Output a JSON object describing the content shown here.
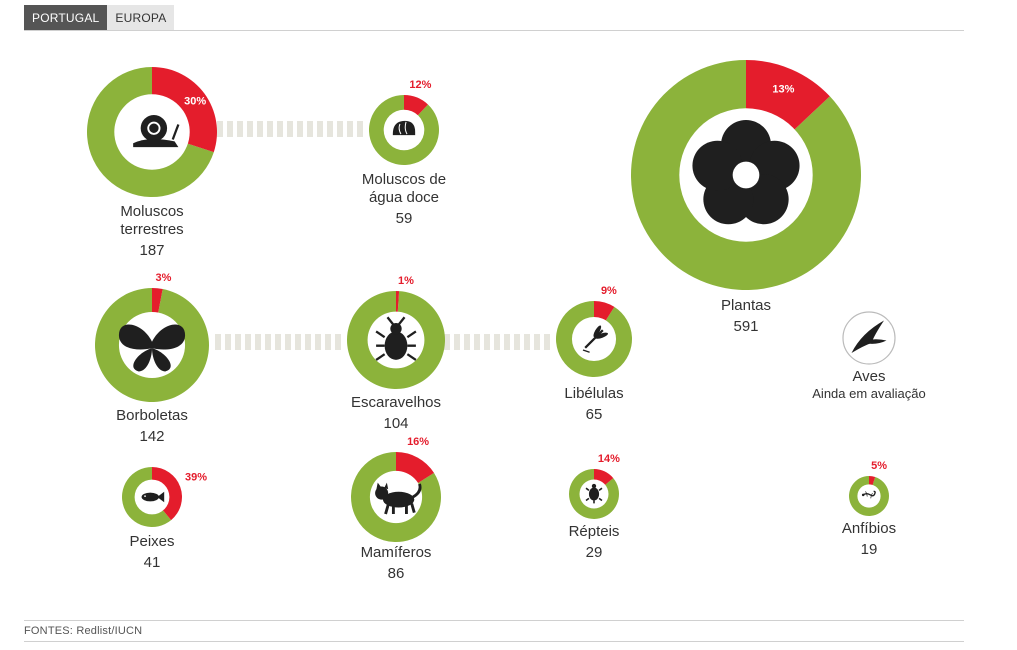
{
  "tabs": [
    {
      "label": "PORTUGAL",
      "active": true
    },
    {
      "label": "EUROPA",
      "active": false
    }
  ],
  "colors": {
    "threatened": "#e41d2c",
    "safe": "#8cb33b",
    "connector": "#e6e5dd",
    "icon": "#1f1f1f",
    "label": "#333333"
  },
  "chart_data": {
    "type": "pie",
    "title": "",
    "series_meaning": "Percentage of threatened species per group (red) vs. rest (green); number = total species evaluated",
    "groups": [
      {
        "key": "moluscos-terrestres",
        "name_lines": [
          "Moluscos",
          "terrestres"
        ],
        "total": 187,
        "threatened_pct": 30,
        "pct_label": "30%",
        "icon": "snail-icon"
      },
      {
        "key": "moluscos-agua-doce",
        "name_lines": [
          "Moluscos de",
          "água doce"
        ],
        "total": 59,
        "threatened_pct": 12,
        "pct_label": "12%",
        "icon": "shell-icon"
      },
      {
        "key": "plantas",
        "name_lines": [
          "Plantas"
        ],
        "total": 591,
        "threatened_pct": 13,
        "pct_label": "13%",
        "icon": "flower-icon"
      },
      {
        "key": "borboletas",
        "name_lines": [
          "Borboletas"
        ],
        "total": 142,
        "threatened_pct": 3,
        "pct_label": "3%",
        "icon": "butterfly-icon"
      },
      {
        "key": "escaravelhos",
        "name_lines": [
          "Escaravelhos"
        ],
        "total": 104,
        "threatened_pct": 1,
        "pct_label": "1%",
        "icon": "beetle-icon"
      },
      {
        "key": "libelulas",
        "name_lines": [
          "Libélulas"
        ],
        "total": 65,
        "threatened_pct": 9,
        "pct_label": "9%",
        "icon": "dragonfly-icon"
      },
      {
        "key": "peixes",
        "name_lines": [
          "Peixes"
        ],
        "total": 41,
        "threatened_pct": 39,
        "pct_label": "39%",
        "icon": "fish-icon"
      },
      {
        "key": "mamiferos",
        "name_lines": [
          "Mamíferos"
        ],
        "total": 86,
        "threatened_pct": 16,
        "pct_label": "16%",
        "icon": "cat-icon"
      },
      {
        "key": "repteis",
        "name_lines": [
          "Répteis"
        ],
        "total": 29,
        "threatened_pct": 14,
        "pct_label": "14%",
        "icon": "turtle-icon"
      },
      {
        "key": "anfibios",
        "name_lines": [
          "Anfíbios"
        ],
        "total": 19,
        "threatened_pct": 5,
        "pct_label": "5%",
        "icon": "salamander-icon"
      }
    ],
    "unevaluated": {
      "name": "Aves",
      "note": "Ainda em avaliação",
      "icon": "bird-icon"
    }
  },
  "footer": {
    "sources": "FONTES: Redlist/IUCN"
  }
}
